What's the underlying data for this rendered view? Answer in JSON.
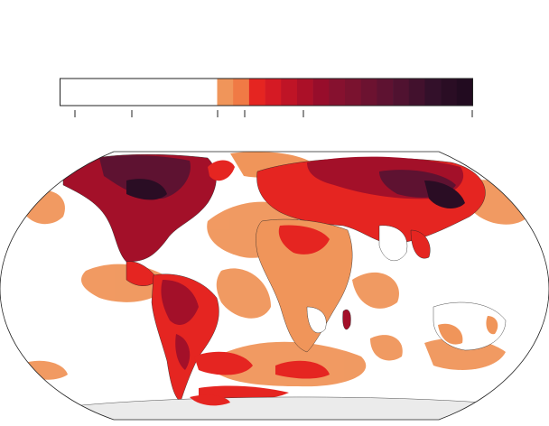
{
  "legend": {
    "label": "",
    "swatches": [
      {
        "color": "#ffffff"
      },
      {
        "color": "#f0955a"
      },
      {
        "color": "#f07a45"
      },
      {
        "color": "#e52521"
      },
      {
        "color": "#d51a24"
      },
      {
        "color": "#bf1426"
      },
      {
        "color": "#ab1028"
      },
      {
        "color": "#970d2b"
      },
      {
        "color": "#86112f"
      },
      {
        "color": "#7a122f"
      },
      {
        "color": "#6c1230"
      },
      {
        "color": "#5e1231"
      },
      {
        "color": "#501230"
      },
      {
        "color": "#42112d"
      },
      {
        "color": "#33102a"
      },
      {
        "color": "#2a0d24"
      },
      {
        "color": "#220b20"
      }
    ],
    "tick_count": 6
  },
  "map": {
    "colors": {
      "ocean": "#ffffff",
      "land_outline": "#222222",
      "antarctica": "#ebebeb",
      "low": "#f0955a",
      "mid": "#e52521",
      "high": "#a31029",
      "very_high": "#5e1231",
      "extreme": "#2a0d24"
    }
  }
}
